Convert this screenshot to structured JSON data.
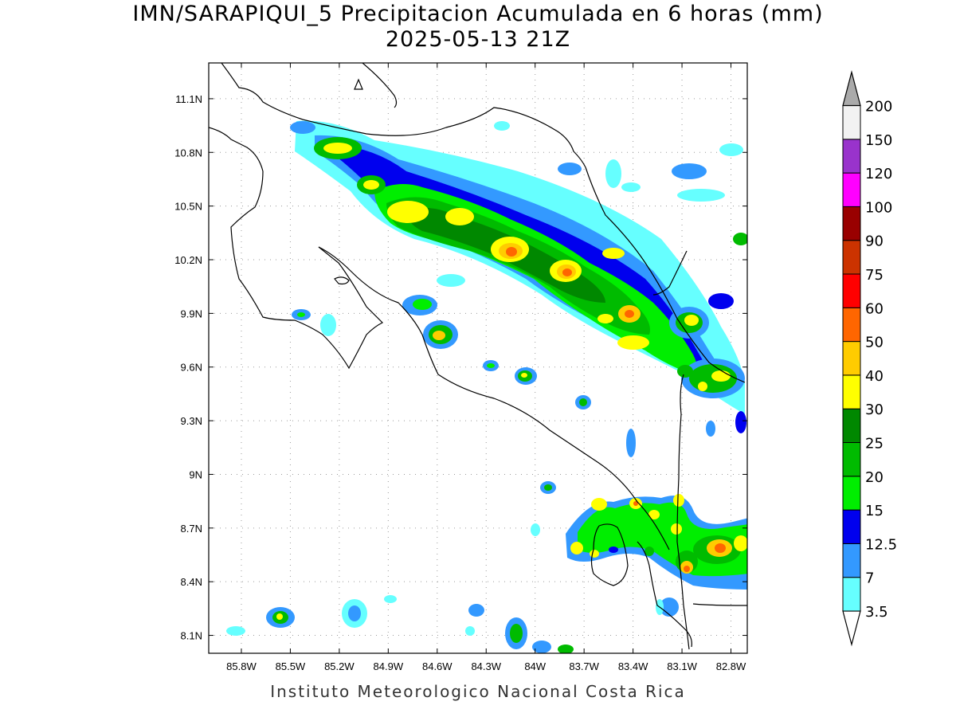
{
  "title_line1": "IMN/SARAPIQUI_5 Precipitacion Acumulada en 6 horas (mm)",
  "title_line2": "2025-05-13 21Z",
  "footer": "Instituto Meteorologico Nacional Costa Rica",
  "map": {
    "lon_range": [
      -86.0,
      -82.7
    ],
    "lat_range": [
      8.0,
      11.3
    ],
    "lon_ticks": [
      "85.8W",
      "85.5W",
      "85.2W",
      "84.9W",
      "84.6W",
      "84.3W",
      "84W",
      "83.7W",
      "83.4W",
      "83.1W",
      "82.8W"
    ],
    "lat_ticks": [
      "11.1N",
      "10.8N",
      "10.5N",
      "10.2N",
      "9.9N",
      "9.6N",
      "9.3N",
      "9N",
      "8.7N",
      "8.4N",
      "8.1N"
    ],
    "grid": "dotted"
  },
  "colorbar": {
    "labels": [
      "3.5",
      "7",
      "12.5",
      "15",
      "20",
      "25",
      "30",
      "40",
      "50",
      "60",
      "75",
      "90",
      "100",
      "120",
      "150",
      "200"
    ],
    "colors": [
      "#66ffff",
      "#3399ff",
      "#0000ee",
      "#00ee00",
      "#00bb00",
      "#008800",
      "#ffff00",
      "#ffcc00",
      "#ff6600",
      "#ff0000",
      "#cc3300",
      "#990000",
      "#ff00ff",
      "#9933cc",
      "#f2f2f2",
      "#aaaaaa"
    ]
  }
}
